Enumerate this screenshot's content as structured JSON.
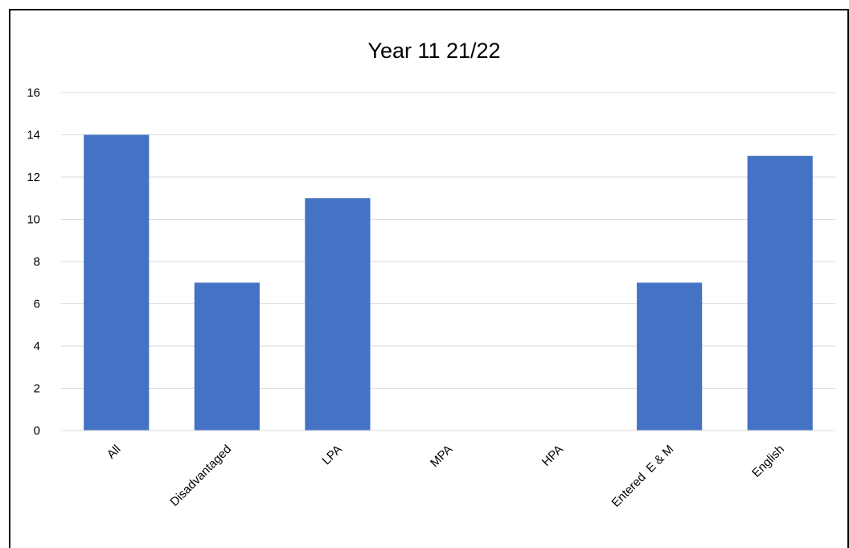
{
  "chart_data": {
    "type": "bar",
    "title": "Year 11 21/22",
    "categories": [
      "All",
      "Disadvantaged",
      "LPA",
      "MPA",
      "HPA",
      "Entered  E & M",
      "English"
    ],
    "series": [
      {
        "values": [
          14,
          7,
          11,
          0,
          0,
          7,
          13
        ]
      }
    ],
    "xlabel": "",
    "ylabel": "",
    "ylim": [
      0,
      16
    ],
    "yticks": [
      0,
      2,
      4,
      6,
      8,
      10,
      12,
      14,
      16
    ],
    "grid": true,
    "legend": "none",
    "bar_color": "#4472C4",
    "grid_color": "#D9D9D9"
  }
}
